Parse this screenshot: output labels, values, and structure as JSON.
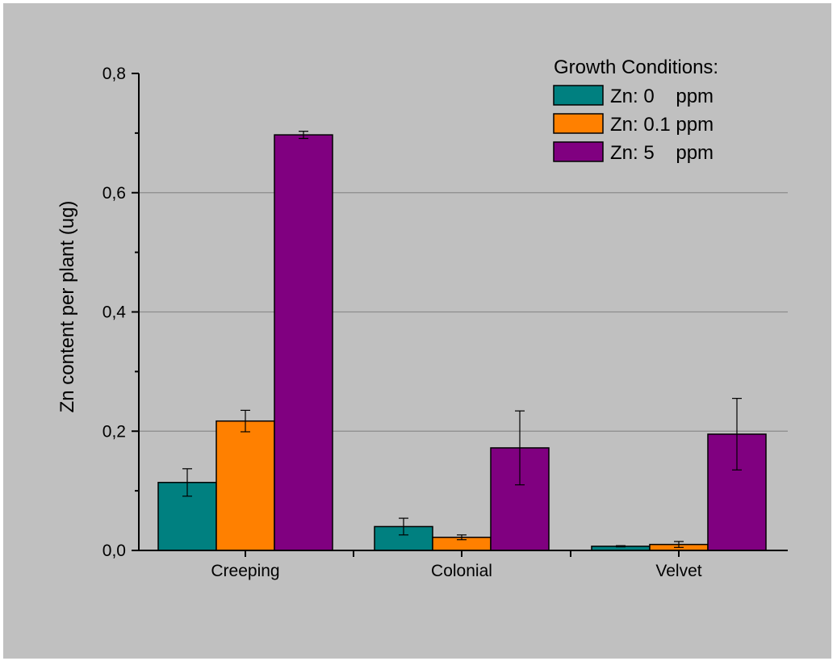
{
  "chart_data": {
    "type": "bar",
    "title": "",
    "xlabel": "",
    "ylabel": "Zn content per plant (ug)",
    "ylim": [
      0,
      0.8
    ],
    "yticks": [
      "0,0",
      "0,2",
      "0,4",
      "0,6",
      "0,8"
    ],
    "ytick_values": [
      0,
      0.2,
      0.4,
      0.6,
      0.8
    ],
    "grid": "horizontal",
    "legend_position": "top-right",
    "legend_title": "Growth Conditions:",
    "categories": [
      "Creeping",
      "Colonial",
      "Velvet"
    ],
    "series": [
      {
        "name": "Zn: 0    ppm",
        "color": "#008080",
        "values": [
          0.114,
          0.04,
          0.007
        ],
        "errors": [
          0.023,
          0.014,
          0.001
        ]
      },
      {
        "name": "Zn: 0.1 ppm",
        "color": "#ff8000",
        "values": [
          0.217,
          0.022,
          0.01
        ],
        "errors": [
          0.018,
          0.004,
          0.005
        ]
      },
      {
        "name": "Zn: 5    ppm",
        "color": "#800080",
        "values": [
          0.697,
          0.172,
          0.195
        ],
        "errors": [
          0.006,
          0.062,
          0.06
        ]
      }
    ]
  }
}
